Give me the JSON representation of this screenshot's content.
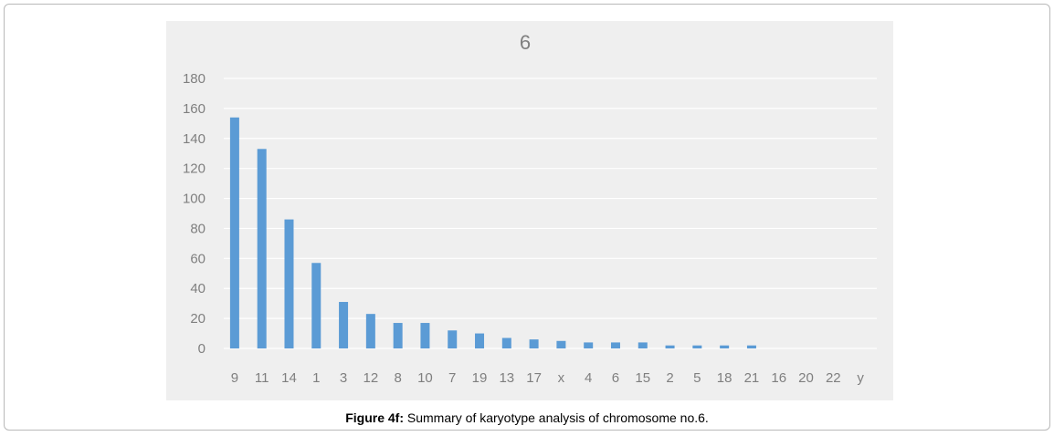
{
  "chart_data": {
    "type": "bar",
    "title": "6",
    "xlabel": "",
    "ylabel": "",
    "categories": [
      "9",
      "11",
      "14",
      "1",
      "3",
      "12",
      "8",
      "10",
      "7",
      "19",
      "13",
      "17",
      "x",
      "4",
      "6",
      "15",
      "2",
      "5",
      "18",
      "21",
      "16",
      "20",
      "22",
      "y"
    ],
    "values": [
      154,
      133,
      86,
      57,
      31,
      23,
      17,
      17,
      12,
      10,
      7,
      6,
      5,
      4,
      4,
      4,
      2,
      2,
      2,
      2,
      0,
      0,
      0,
      0
    ],
    "ylim": [
      0,
      180
    ],
    "yticks": [
      0,
      20,
      40,
      60,
      80,
      100,
      120,
      140,
      160,
      180
    ],
    "grid": true,
    "bar_color": "#5b9bd5"
  },
  "caption": {
    "label": "Figure 4f:",
    "text": " Summary of karyotype analysis of chromosome no.6."
  }
}
